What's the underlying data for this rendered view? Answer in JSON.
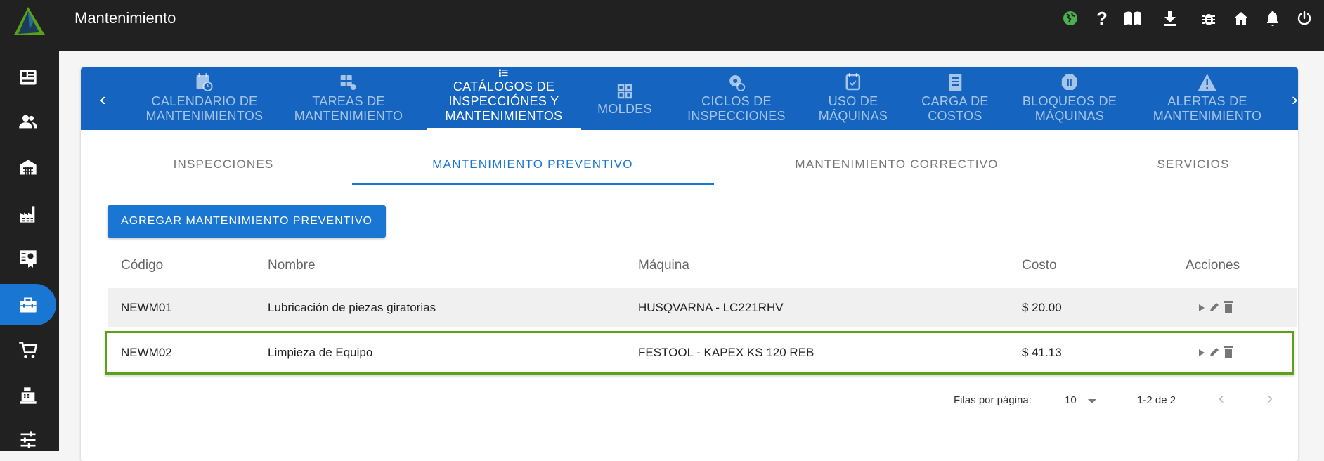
{
  "header": {
    "title": "Mantenimiento",
    "icons": [
      "globe-icon",
      "help-icon",
      "book-icon",
      "download-icon",
      "bug-icon",
      "home-icon",
      "bell-icon",
      "power-icon"
    ],
    "globe_color": "#4caf50"
  },
  "sidebar": {
    "items": [
      "newspaper",
      "people",
      "warehouse",
      "factory",
      "certificate",
      "toolbox",
      "cart",
      "cash-register",
      "sliders"
    ],
    "selected": "toolbox",
    "accent": "#1976d2"
  },
  "main_tabs": [
    {
      "line1": "CALENDARIO DE",
      "line2": "MANTENIMIENTOS"
    },
    {
      "line1": "TAREAS DE",
      "line2": "MANTENIMIENTO"
    },
    {
      "line1": "CATÁLOGOS DE",
      "line2": "INSPECCIÓNES Y",
      "line3": "MANTENIMIENTOS",
      "active": true
    },
    {
      "line1": "",
      "line2": "MOLDES"
    },
    {
      "line1": "CICLOS DE",
      "line2": "INSPECCIONES"
    },
    {
      "line1": "USO DE",
      "line2": "MÁQUINAS"
    },
    {
      "line1": "CARGA DE",
      "line2": "COSTOS"
    },
    {
      "line1": "BLOQUEOS DE",
      "line2": "MÁQUINAS"
    },
    {
      "line1": "ALERTAS DE",
      "line2": "MANTENIMIENTO"
    }
  ],
  "sub_tabs": [
    "INSPECCIONES",
    "MANTENIMIENTO PREVENTIVO",
    "MANTENIMIENTO CORRECTIVO",
    "SERVICIOS"
  ],
  "add_button": "AGREGAR MANTENIMIENTO PREVENTIVO",
  "table": {
    "headers": [
      "Código",
      "Nombre",
      "Máquina",
      "Costo",
      "Acciones"
    ],
    "rows": [
      {
        "codigo": "NEWM01",
        "nombre": "Lubricación de piezas giratorias",
        "maquina": "HUSQVARNA - LC221RHV",
        "costo": "$ 20.00"
      },
      {
        "codigo": "NEWM02",
        "nombre": "Limpieza de Equipo",
        "maquina": "FESTOOL - KAPEX KS 120 REB",
        "costo": "$ 41.13",
        "highlighted": true
      }
    ]
  },
  "pagination": {
    "rows_label": "Filas por página:",
    "rows_value": "10",
    "range": "1-2 de 2"
  }
}
